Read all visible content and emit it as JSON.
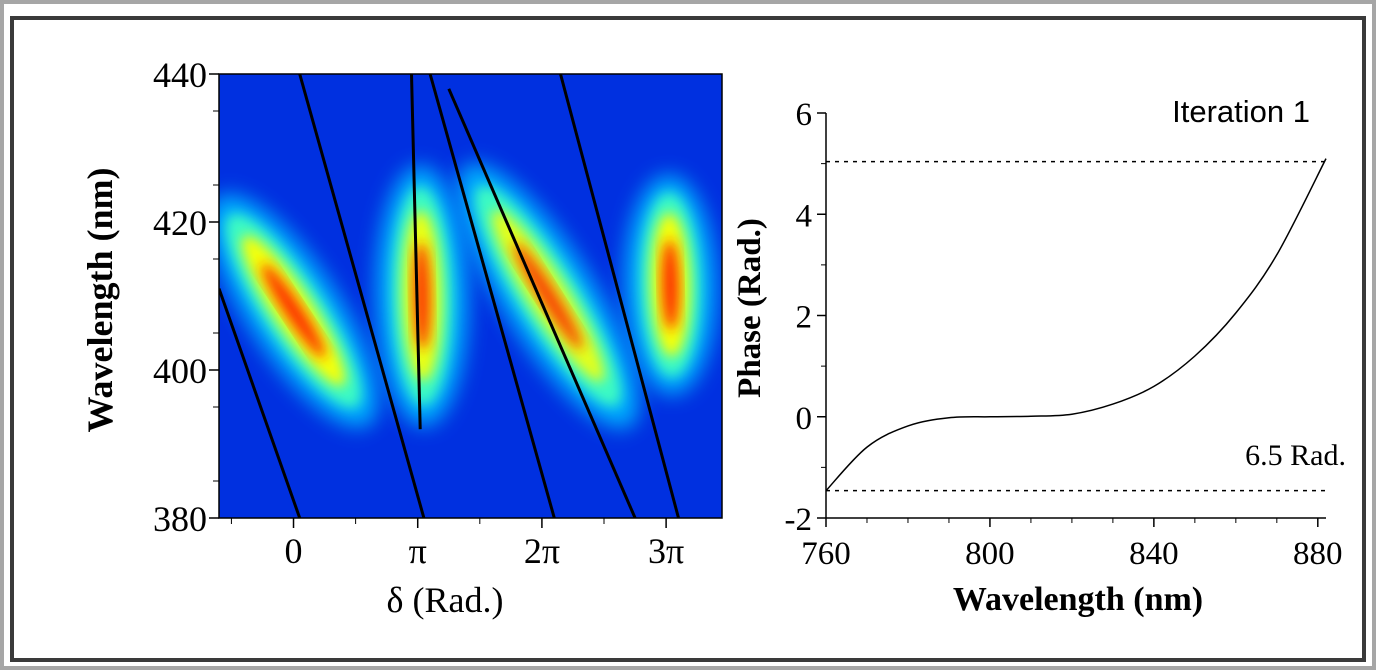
{
  "chart_data": [
    {
      "type": "heatmap",
      "xlabel": "δ (Rad.)",
      "ylabel": "Wavelength (nm)",
      "xlim": [
        -0.6,
        3.45
      ],
      "ylim": [
        380,
        440
      ],
      "x_ticks": [
        0,
        1,
        2,
        3
      ],
      "x_tick_labels": [
        "0",
        "π",
        "2π",
        "3π"
      ],
      "y_ticks": [
        380,
        400,
        420,
        440
      ],
      "y_tick_labels": [
        "380",
        "400",
        "420",
        "440"
      ],
      "colormap": [
        "#0030e0",
        "#00b4ff",
        "#40ffc0",
        "#ffff00",
        "#ff2000"
      ],
      "background_color": "#0030e0",
      "blobs": [
        {
          "x0": -0.55,
          "y0": 422,
          "x1": 0.55,
          "y1": 394,
          "peak": 1.0
        },
        {
          "x0": 1.02,
          "y0": 426,
          "x1": 1.05,
          "y1": 394,
          "peak": 0.95
        },
        {
          "x0": 1.45,
          "y0": 426,
          "x1": 2.65,
          "y1": 394,
          "peak": 0.9
        },
        {
          "x0": 3.02,
          "y0": 425,
          "x1": 3.05,
          "y1": 398,
          "peak": 1.0
        }
      ],
      "contour_lines": [
        [
          [
            -0.6,
            411
          ],
          [
            0.05,
            380
          ]
        ],
        [
          [
            0.05,
            440
          ],
          [
            1.05,
            380
          ]
        ],
        [
          [
            0.95,
            440
          ],
          [
            1.02,
            392
          ]
        ],
        [
          [
            1.1,
            440
          ],
          [
            2.1,
            380
          ]
        ],
        [
          [
            1.25,
            438
          ],
          [
            2.75,
            380
          ]
        ],
        [
          [
            2.15,
            440
          ],
          [
            3.1,
            380
          ]
        ]
      ]
    },
    {
      "type": "line",
      "title": "Iteration 1",
      "xlabel": "Wavelength (nm)",
      "ylabel": "Phase (Rad.)",
      "xlim": [
        760,
        882
      ],
      "ylim": [
        -2,
        6
      ],
      "x_ticks": [
        760,
        800,
        840,
        880
      ],
      "y_ticks": [
        -2,
        0,
        2,
        4,
        6
      ],
      "series": [
        {
          "x": [
            760,
            770,
            780,
            790,
            800,
            810,
            820,
            830,
            840,
            850,
            860,
            870,
            882
          ],
          "y": [
            -1.46,
            -0.6,
            -0.18,
            -0.02,
            0.0,
            0.01,
            0.05,
            0.25,
            0.6,
            1.2,
            2.05,
            3.2,
            5.1
          ]
        }
      ],
      "reference_lines": [
        5.04,
        -1.46
      ],
      "annotation": "6.5 Rad."
    }
  ]
}
